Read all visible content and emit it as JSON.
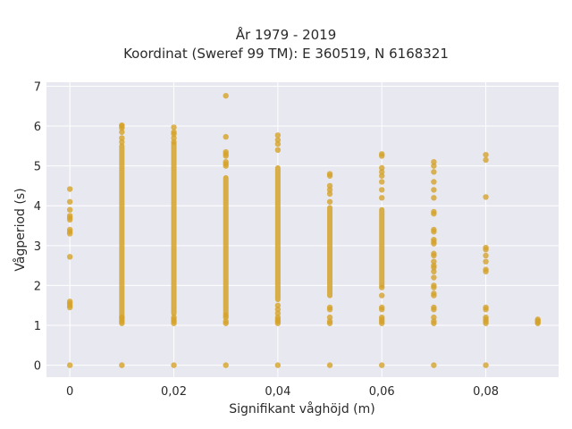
{
  "chart_data": {
    "type": "scatter",
    "title_lines": [
      "År 1979 - 2019",
      "Koordinat (Sweref 99 TM): E 360519, N 6168321"
    ],
    "xlabel": "Signifikant våghöjd (m)",
    "ylabel": "Vågperiod (s)",
    "xlim": [
      -0.0045,
      0.094
    ],
    "ylim": [
      -0.3,
      7.1
    ],
    "x_ticks": [
      {
        "value": 0,
        "label": "0"
      },
      {
        "value": 0.02,
        "label": "0,02"
      },
      {
        "value": 0.04,
        "label": "0,04"
      },
      {
        "value": 0.06,
        "label": "0,06"
      },
      {
        "value": 0.08,
        "label": "0,08"
      }
    ],
    "y_ticks": [
      {
        "value": 0,
        "label": "0"
      },
      {
        "value": 1,
        "label": "1"
      },
      {
        "value": 2,
        "label": "2"
      },
      {
        "value": 3,
        "label": "3"
      },
      {
        "value": 4,
        "label": "4"
      },
      {
        "value": 5,
        "label": "5"
      },
      {
        "value": 6,
        "label": "6"
      },
      {
        "value": 7,
        "label": "7"
      }
    ],
    "grid": true,
    "marker_color": "#d4a22a",
    "plot_background": "#e8e8f0",
    "series": [
      {
        "columns": [
          {
            "x": 0,
            "points": [
              0,
              1.45,
              1.5,
              1.55,
              1.6,
              2.72,
              3.3,
              3.35,
              3.4,
              3.65,
              3.7,
              3.75,
              3.9,
              4.1,
              4.42
            ]
          },
          {
            "x": 0.01,
            "points": [
              0,
              1.05,
              1.1,
              1.15,
              1.2,
              5.6,
              5.7,
              5.85,
              5.95,
              6.0,
              6.02
            ],
            "range": [
              1.2,
              5.5
            ]
          },
          {
            "x": 0.02,
            "points": [
              0,
              1.05,
              1.1,
              1.15,
              1.2,
              5.6,
              5.7,
              5.8,
              5.85,
              5.97
            ],
            "range": [
              1.3,
              5.55
            ]
          },
          {
            "x": 0.03,
            "points": [
              0,
              1.05,
              1.1,
              1.2,
              1.25,
              5.0,
              5.05,
              5.1,
              5.25,
              5.3,
              5.35,
              5.73,
              6.76
            ],
            "range": [
              1.3,
              4.7
            ]
          },
          {
            "x": 0.04,
            "points": [
              0,
              1.05,
              1.1,
              1.15,
              1.2,
              1.3,
              1.4,
              1.5,
              5.4,
              5.55,
              5.65,
              5.77
            ],
            "range": [
              1.65,
              4.95
            ]
          },
          {
            "x": 0.05,
            "points": [
              0,
              1.05,
              1.1,
              1.2,
              1.4,
              1.45,
              4.1,
              4.3,
              4.4,
              4.5,
              4.75,
              4.8
            ],
            "range": [
              1.75,
              3.95
            ]
          },
          {
            "x": 0.06,
            "points": [
              0,
              1.05,
              1.1,
              1.15,
              1.2,
              1.4,
              1.45,
              1.75,
              1.95,
              4.2,
              4.4,
              4.6,
              4.75,
              4.85,
              4.95,
              5.25,
              5.3
            ],
            "range": [
              2.0,
              3.9
            ]
          },
          {
            "x": 0.07,
            "points": [
              0,
              1.05,
              1.1,
              1.2,
              1.4,
              1.45,
              1.75,
              1.8,
              1.95,
              2.0,
              2.2,
              2.35,
              2.45,
              2.5,
              2.6,
              2.75,
              2.8,
              3.05,
              3.1,
              3.15,
              3.35,
              3.4,
              3.8,
              3.85,
              4.2,
              4.4,
              4.6,
              4.85,
              5.0,
              5.1
            ]
          },
          {
            "x": 0.08,
            "points": [
              0,
              1.05,
              1.1,
              1.15,
              1.2,
              1.4,
              1.45,
              2.35,
              2.4,
              2.6,
              2.75,
              2.9,
              2.95,
              4.22,
              5.15,
              5.28
            ]
          },
          {
            "x": 0.09,
            "points": [
              1.05,
              1.08,
              1.12,
              1.15
            ]
          }
        ]
      }
    ]
  }
}
